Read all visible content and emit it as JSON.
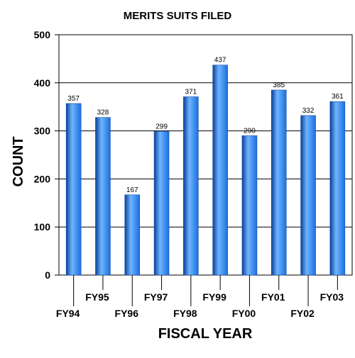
{
  "chart_data": {
    "type": "bar",
    "title": "MERITS SUITS FILED",
    "xlabel": "FISCAL YEAR",
    "ylabel": "COUNT",
    "categories": [
      "FY94",
      "FY95",
      "FY96",
      "FY97",
      "FY98",
      "FY99",
      "FY00",
      "FY01",
      "FY02",
      "FY03"
    ],
    "values": [
      357,
      328,
      167,
      299,
      371,
      437,
      290,
      385,
      332,
      361
    ],
    "data_labels": [
      "357",
      "328",
      "167",
      "299",
      "371",
      "437",
      "290",
      "385",
      "332",
      "361"
    ],
    "ylim": [
      0,
      500
    ],
    "yticks": [
      0,
      100,
      200,
      300,
      400,
      500
    ],
    "ytick_labels": [
      "0",
      "100",
      "200",
      "300",
      "400",
      "500"
    ],
    "grid": "horizontal",
    "legend": "none",
    "colors": {
      "bar": "#1a6fe0",
      "bar_dark": "#0a3f9a",
      "bar_light": "#6fb4ff",
      "grid": "#000000",
      "text": "#000000"
    }
  }
}
